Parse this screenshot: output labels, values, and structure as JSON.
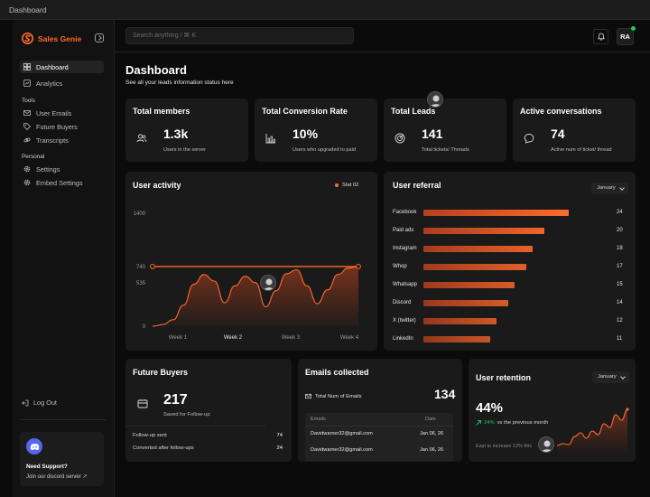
{
  "window": {
    "title": "Dashboard"
  },
  "sidebar": {
    "brand": "Sales Genie",
    "items": [
      {
        "label": "Dashboard",
        "icon": "grid-icon",
        "active": true
      },
      {
        "label": "Analytics",
        "icon": "analytics-icon"
      }
    ],
    "sections": [
      {
        "title": "Tools",
        "items": [
          {
            "label": "User Emails",
            "icon": "mail-icon"
          },
          {
            "label": "Future Buyers",
            "icon": "tag-icon"
          },
          {
            "label": "Transcripts",
            "icon": "link-icon"
          }
        ]
      },
      {
        "title": "Personal",
        "items": [
          {
            "label": "Settings",
            "icon": "gear-icon"
          },
          {
            "label": "Embed Settings",
            "icon": "gear-icon"
          }
        ]
      }
    ],
    "logout": "Log Out",
    "support": {
      "title": "Need Support?",
      "link": "Join our discord server ↗"
    }
  },
  "header": {
    "search_placeholder": "Search anything / ⌘ K",
    "avatar_initials": "RA"
  },
  "page": {
    "title": "Dashboard",
    "subtitle": "See all your leads information status here"
  },
  "stats": [
    {
      "title": "Total members",
      "value": "1.3k",
      "desc": "Users in the server",
      "icon": "users-icon"
    },
    {
      "title": "Total Conversion Rate",
      "value": "10%",
      "desc": "Users who upgraded to paid",
      "icon": "bar-chart-icon"
    },
    {
      "title": "Total Leads",
      "value": "141",
      "desc": "Total tickets/ Threads",
      "icon": "target-icon"
    },
    {
      "title": "Active conversations",
      "value": "74",
      "desc": "Active num of ticket/ thread",
      "icon": "chat-icon"
    }
  ],
  "user_activity": {
    "title": "User activity",
    "legend": "Stat 02"
  },
  "user_referral": {
    "title": "User referral",
    "select": "January"
  },
  "future_buyers": {
    "title": "Future Buyers",
    "value": "217",
    "desc": "Saved for Follow-up",
    "rows": [
      {
        "label": "Follow-up sent",
        "value": "74"
      },
      {
        "label": "Converted after follow-ups",
        "value": "24"
      }
    ]
  },
  "emails": {
    "title": "Emails collected",
    "total_label": "Total Num of Emails",
    "total": "134",
    "columns": [
      "Emails",
      "Date"
    ],
    "rows": [
      {
        "email": "Davidwarner32@gmail.com",
        "date": "Jan 06, 26"
      },
      {
        "email": "Davidwarner32@gmail.com",
        "date": "Jan 06, 26"
      }
    ]
  },
  "retention": {
    "title": "User retention",
    "select": "January",
    "value": "44%",
    "change": "24%",
    "change_suffix": "vs the previous month",
    "note": "Expt to increase 12% this"
  },
  "chart_data": [
    {
      "type": "area",
      "title": "User activity",
      "x_labels": [
        "Week 1",
        "Week 2",
        "Week 3",
        "Week 4"
      ],
      "y_ticks": [
        0,
        535,
        740,
        1400
      ],
      "ylim": [
        0,
        1400
      ],
      "series": [
        {
          "name": "Stat 02",
          "values": [
            740,
            740
          ]
        },
        {
          "values": [
            0,
            20,
            80,
            260,
            520,
            640,
            560,
            290,
            500,
            620,
            540,
            240,
            440,
            650,
            700,
            500,
            280,
            450,
            640,
            720,
            740
          ]
        }
      ],
      "line_color": "#ff6a2a"
    },
    {
      "type": "bar",
      "title": "User referral",
      "categories": [
        "Facebook",
        "Paid ads",
        "Instagram",
        "Whop",
        "Whatsapp",
        "Discord",
        "X (twitter)",
        "LinkedIn"
      ],
      "values": [
        24,
        20,
        18,
        17,
        15,
        14,
        12,
        11
      ],
      "xlim": [
        0,
        24
      ],
      "bar_color": "#ff6a2a"
    },
    {
      "type": "line",
      "title": "User retention",
      "values": [
        10,
        12,
        11,
        20,
        24,
        18,
        26,
        22,
        34,
        30,
        44,
        38,
        50
      ],
      "ylim": [
        0,
        50
      ],
      "line_color": "#ff6a2a"
    }
  ]
}
